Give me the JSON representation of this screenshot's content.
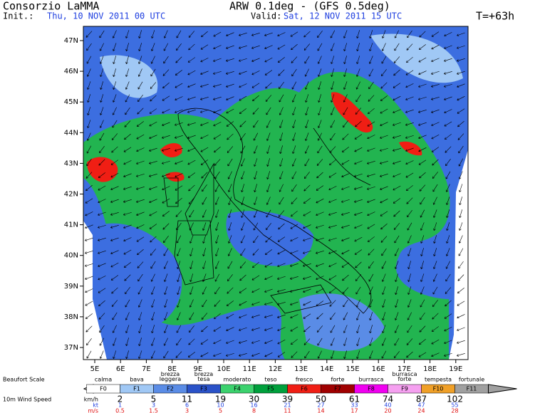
{
  "header": {
    "org": "Consorzio LaMMA",
    "model": "ARW 0.1deg - (GFS 0.5deg)",
    "init_label": "Init.:",
    "init": "Thu, 10 NOV 2011  00 UTC",
    "valid_label": "Valid:",
    "valid": "Sat, 12 NOV 2011  15 UTC",
    "step": "T=+63h"
  },
  "map": {
    "lat_labels": [
      "47N",
      "46N",
      "45N",
      "44N",
      "43N",
      "42N",
      "41N",
      "40N",
      "39N",
      "38N",
      "37N"
    ],
    "lon_labels": [
      "5E",
      "6E",
      "7E",
      "8E",
      "9E",
      "10E",
      "11E",
      "12E",
      "13E",
      "14E",
      "15E",
      "16E",
      "17E",
      "18E",
      "19E"
    ]
  },
  "legend": {
    "title": "Beaufort Scale",
    "classes": [
      {
        "name": "calma",
        "code": "F0",
        "color": "#ffffff"
      },
      {
        "name": "bava",
        "code": "F1",
        "color": "#a0c8f5"
      },
      {
        "name": "brezza leggera",
        "code": "F2",
        "color": "#5a8ce6"
      },
      {
        "name": "brezza tesa",
        "code": "F3",
        "color": "#2a52c8"
      },
      {
        "name": "moderato",
        "code": "F4",
        "color": "#3cd26e"
      },
      {
        "name": "teso",
        "code": "F5",
        "color": "#00a03c"
      },
      {
        "name": "fresco",
        "code": "F6",
        "color": "#f01e14"
      },
      {
        "name": "forte",
        "code": "F7",
        "color": "#a00000"
      },
      {
        "name": "burrasca",
        "code": "F8",
        "color": "#f000f0"
      },
      {
        "name": "burrasca forte",
        "code": "F9",
        "color": "#f5a0f0"
      },
      {
        "name": "tempesta",
        "code": "F10",
        "color": "#f0a028"
      },
      {
        "name": "fortunale",
        "code": "F11",
        "color": "#a0a0a0"
      }
    ],
    "speed_title": "10m Wind Speed",
    "units": [
      "km/h",
      "kt",
      "m/s"
    ],
    "kmh": [
      "2",
      "5",
      "11",
      "19",
      "30",
      "39",
      "50",
      "61",
      "74",
      "87",
      "102"
    ],
    "kt": [
      "1",
      "3",
      "6",
      "10",
      "16",
      "21",
      "27",
      "33",
      "40",
      "47",
      "55"
    ],
    "ms": [
      "0.5",
      "1.5",
      "3",
      "5",
      "8",
      "11",
      "14",
      "17",
      "20",
      "24",
      "28"
    ]
  }
}
